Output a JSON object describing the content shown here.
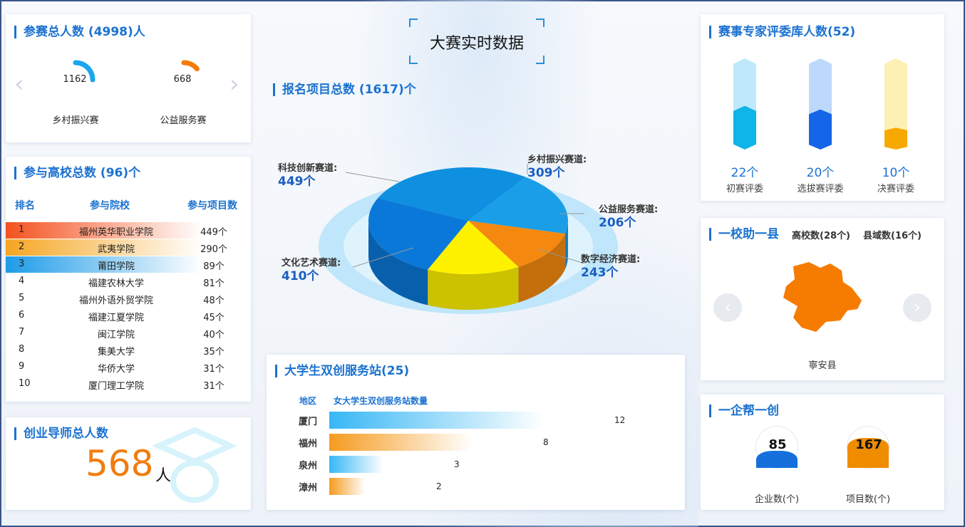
{
  "page_title": "大赛实时数据",
  "participants": {
    "title": "参赛总人数 (4998)人",
    "items": [
      {
        "value": "1162",
        "label": "乡村振兴赛",
        "color": "#1aa7ec",
        "fraction": 0.25
      },
      {
        "value": "668",
        "label": "公益服务赛",
        "color": "#f57c0a",
        "fraction": 0.14
      }
    ],
    "prev_icon": "chevron-left-icon",
    "next_icon": "chevron-right-icon"
  },
  "colleges": {
    "title": "参与高校总数 (96)个",
    "headers": {
      "rank": "排名",
      "name": "参与院校",
      "count": "参与项目数"
    },
    "rows": [
      {
        "rank": "1",
        "name": "福州英华职业学院",
        "count": "449个"
      },
      {
        "rank": "2",
        "name": "武夷学院",
        "count": "290个"
      },
      {
        "rank": "3",
        "name": "莆田学院",
        "count": "89个"
      },
      {
        "rank": "4",
        "name": "福建农林大学",
        "count": "81个"
      },
      {
        "rank": "5",
        "name": "福州外语外贸学院",
        "count": "48个"
      },
      {
        "rank": "6",
        "name": "福建江夏学院",
        "count": "45个"
      },
      {
        "rank": "7",
        "name": "闽江学院",
        "count": "40个"
      },
      {
        "rank": "8",
        "name": "集美大学",
        "count": "35个"
      },
      {
        "rank": "9",
        "name": "华侨大学",
        "count": "31个"
      },
      {
        "rank": "10",
        "name": "厦门理工学院",
        "count": "31个"
      }
    ],
    "highlight_colors": [
      "#f4511e",
      "#f5a623",
      "#1e9be8"
    ]
  },
  "mentors": {
    "title": "创业导师总人数",
    "value": "568",
    "unit": "人"
  },
  "projects": {
    "title": "报名项目总数 (1617)个"
  },
  "chart_data": {
    "type": "pie",
    "title": "报名项目总数 (1617)个",
    "slices": [
      {
        "name": "科技创新赛道:",
        "value": 449,
        "value_label": "449个",
        "color": "#0e8fe0"
      },
      {
        "name": "乡村振兴赛道:",
        "value": 309,
        "value_label": "309个",
        "color": "#1a9ee8"
      },
      {
        "name": "公益服务赛道:",
        "value": 206,
        "value_label": "206个",
        "color": "#f5890f"
      },
      {
        "name": "数字经济赛道:",
        "value": 243,
        "value_label": "243个",
        "color": "#fff200"
      },
      {
        "name": "文化艺术赛道:",
        "value": 410,
        "value_label": "410个",
        "color": "#0a78d8"
      }
    ]
  },
  "stations": {
    "title": "大学生双创服务站(25)",
    "col_region": "地区",
    "col_count": "女大学生双创服务站数量",
    "max": 12,
    "rows": [
      {
        "region": "厦门",
        "value": 12,
        "label": "12",
        "color": "#37b7f5"
      },
      {
        "region": "福州",
        "value": 8,
        "label": "8",
        "color": "#f59b1f"
      },
      {
        "region": "泉州",
        "value": 3,
        "label": "3",
        "color": "#37b7f5"
      },
      {
        "region": "漳州",
        "value": 2,
        "label": "2",
        "color": "#f59b1f"
      }
    ]
  },
  "experts": {
    "title": "赛事专家评委库人数(52)",
    "items": [
      {
        "value": "22个",
        "label": "初赛评委",
        "color": "#0fb4e8",
        "light": "#bfe9fb",
        "fraction": 0.48
      },
      {
        "value": "20个",
        "label": "选拔赛评委",
        "color": "#1565e8",
        "light": "#bcd8fb",
        "fraction": 0.44
      },
      {
        "value": "10个",
        "label": "决赛评委",
        "color": "#f6a900",
        "light": "#fdf0b5",
        "fraction": 0.24
      }
    ]
  },
  "county": {
    "title": "一校助一县",
    "tab_schools": "高校数(28个)",
    "tab_counties": "县域数(16个)",
    "name": "寧安县",
    "map_color": "#f57c00",
    "prev_icon": "chevron-left-icon",
    "next_icon": "chevron-right-icon"
  },
  "enterprise": {
    "title": "一企帮一创",
    "items": [
      {
        "value": "85",
        "label": "企业数(个)",
        "color": "#1570dc",
        "fraction": 0.42
      },
      {
        "value": "167",
        "label": "项目数(个)",
        "color": "#f08c00",
        "fraction": 0.72
      }
    ]
  }
}
